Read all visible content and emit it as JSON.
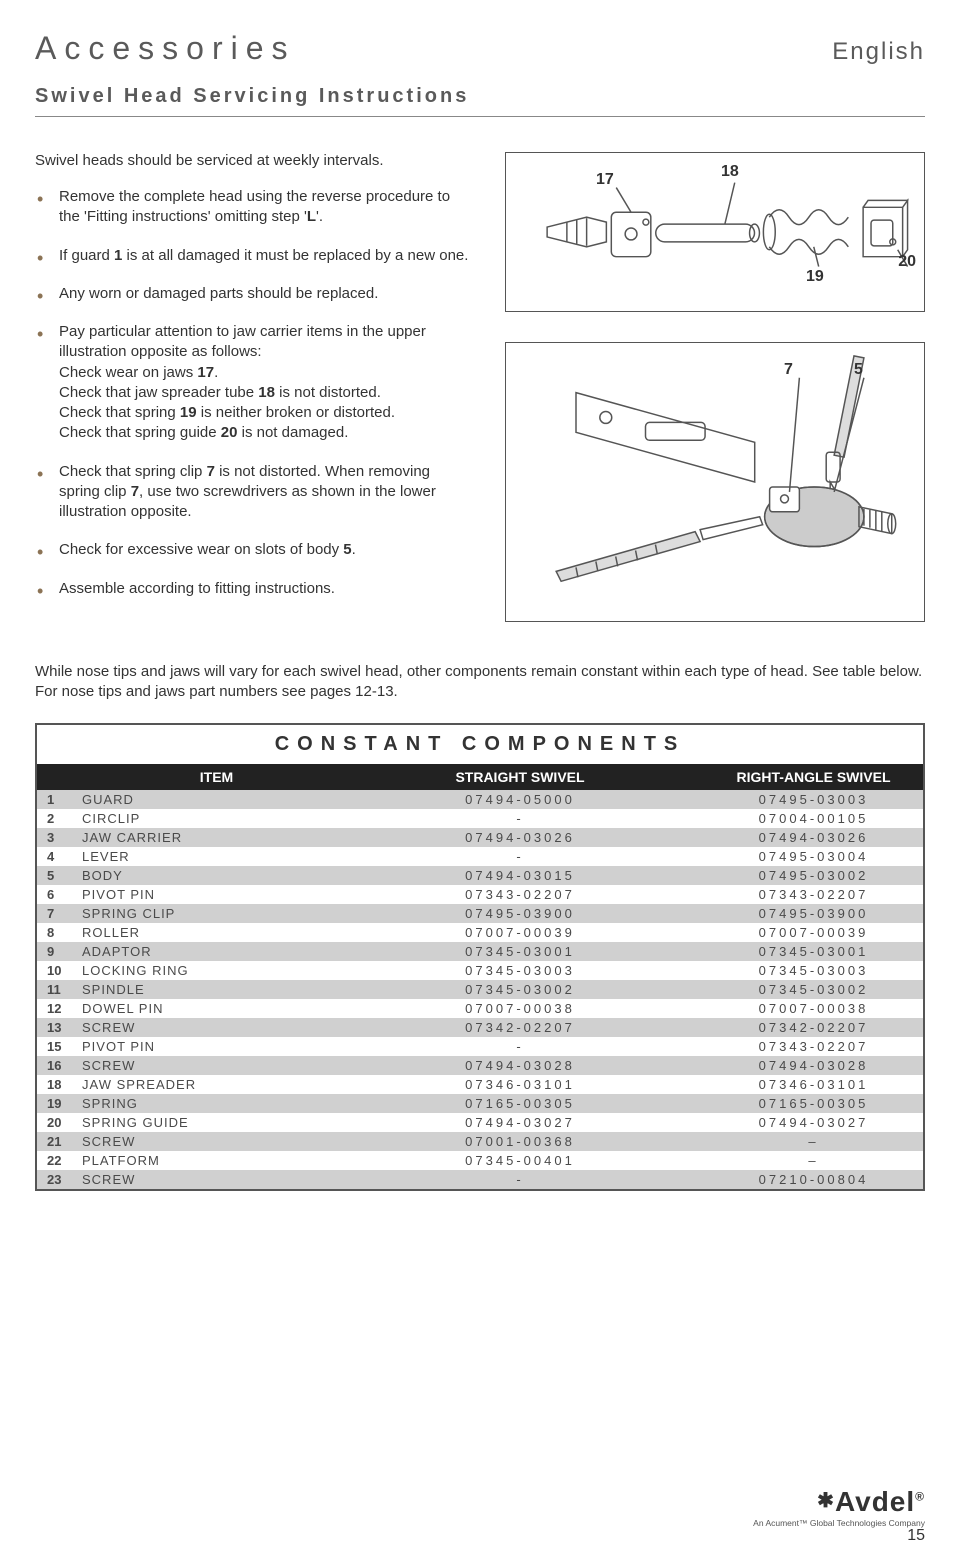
{
  "header": {
    "title": "Accessories",
    "subtitle": "Swivel Head Servicing Instructions",
    "language": "English"
  },
  "intro": "Swivel heads should be serviced at weekly intervals.",
  "bullets": [
    "Remove the complete head using the reverse procedure to the 'Fitting instructions' omitting step 'L'.",
    "If guard 1 is at all damaged it must be replaced by a new one.",
    "Any worn or damaged parts should be replaced.",
    "Pay particular attention to jaw carrier items in the upper illustration opposite as follows:\nCheck wear on jaws 17.\nCheck that jaw spreader tube 18 is not distorted.\nCheck that spring 19 is neither broken or distorted.\nCheck that spring guide 20 is not damaged.",
    "Check that spring clip 7 is not distorted. When removing spring clip 7, use two screwdrivers as shown in the lower illustration opposite.",
    "Check for excessive wear on slots of body 5.",
    "Assemble according to fitting instructions."
  ],
  "diagram1_labels": {
    "l17": "17",
    "l18": "18",
    "l19": "19",
    "l20": "20"
  },
  "diagram2_labels": {
    "l7": "7",
    "l5": "5"
  },
  "table_intro": "While nose tips and jaws will vary for each swivel head, other components remain constant within each type of head. See table below. For nose tips and jaws part numbers see pages 12-13.",
  "table_title": "CONSTANT COMPONENTS",
  "table_headers": {
    "item": "ITEM",
    "straight": "STRAIGHT SWIVEL",
    "right": "RIGHT-ANGLE SWIVEL"
  },
  "rows": [
    {
      "n": "1",
      "item": "GUARD",
      "s": "07494-05000",
      "r": "07495-03003"
    },
    {
      "n": "2",
      "item": "CIRCLIP",
      "s": "-",
      "r": "07004-00105"
    },
    {
      "n": "3",
      "item": "JAW CARRIER",
      "s": "07494-03026",
      "r": "07494-03026"
    },
    {
      "n": "4",
      "item": "LEVER",
      "s": "-",
      "r": "07495-03004"
    },
    {
      "n": "5",
      "item": "BODY",
      "s": "07494-03015",
      "r": "07495-03002"
    },
    {
      "n": "6",
      "item": "PIVOT PIN",
      "s": "07343-02207",
      "r": "07343-02207"
    },
    {
      "n": "7",
      "item": "SPRING CLIP",
      "s": "07495-03900",
      "r": "07495-03900"
    },
    {
      "n": "8",
      "item": "ROLLER",
      "s": "07007-00039",
      "r": "07007-00039"
    },
    {
      "n": "9",
      "item": "ADAPTOR",
      "s": "07345-03001",
      "r": "07345-03001"
    },
    {
      "n": "10",
      "item": "LOCKING RING",
      "s": "07345-03003",
      "r": "07345-03003"
    },
    {
      "n": "11",
      "item": "SPINDLE",
      "s": "07345-03002",
      "r": "07345-03002"
    },
    {
      "n": "12",
      "item": "DOWEL PIN",
      "s": "07007-00038",
      "r": "07007-00038"
    },
    {
      "n": "13",
      "item": "SCREW",
      "s": "07342-02207",
      "r": "07342-02207"
    },
    {
      "n": "15",
      "item": "PIVOT PIN",
      "s": "-",
      "r": "07343-02207"
    },
    {
      "n": "16",
      "item": "SCREW",
      "s": "07494-03028",
      "r": "07494-03028"
    },
    {
      "n": "18",
      "item": "JAW SPREADER",
      "s": "07346-03101",
      "r": "07346-03101"
    },
    {
      "n": "19",
      "item": "SPRING",
      "s": "07165-00305",
      "r": "07165-00305"
    },
    {
      "n": "20",
      "item": "SPRING GUIDE",
      "s": "07494-03027",
      "r": "07494-03027"
    },
    {
      "n": "21",
      "item": "SCREW",
      "s": "07001-00368",
      "r": "–"
    },
    {
      "n": "22",
      "item": "PLATFORM",
      "s": "07345-00401",
      "r": "–"
    },
    {
      "n": "23",
      "item": "SCREW",
      "s": "-",
      "r": "07210-00804"
    }
  ],
  "footer": {
    "brand": "Avdel",
    "tagline": "An Acument™ Global Technologies Company"
  },
  "page_number": "15",
  "accent_color": "#8b7355"
}
